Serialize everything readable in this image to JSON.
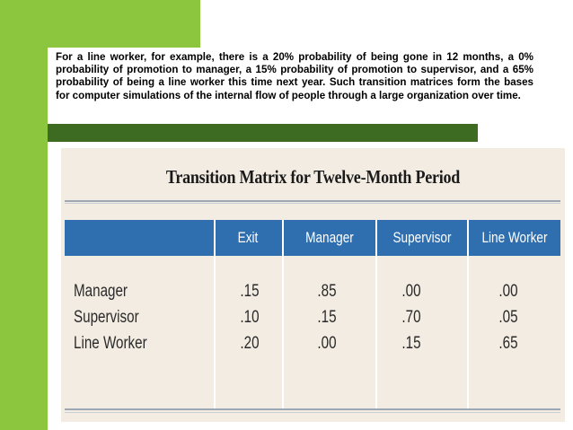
{
  "paragraph": "For a line worker, for example, there is a 20% probability of being gone in 12 months, a 0% probability of promotion to manager, a 15% probability of promotion to supervisor, and a 65% probability of being a line worker this time next year. Such transition matrices form the bases for computer simulations of the internal flow of people through a large organization over time.",
  "figure": {
    "title": "Transition Matrix for Twelve-Month Period",
    "columns": [
      "Exit",
      "Manager",
      "Supervisor",
      "Line Worker"
    ],
    "rows": [
      {
        "label": "Manager",
        "values": [
          ".15",
          ".85",
          ".00",
          ".00"
        ]
      },
      {
        "label": "Supervisor",
        "values": [
          ".10",
          ".15",
          ".70",
          ".05"
        ]
      },
      {
        "label": "Line Worker",
        "values": [
          ".20",
          ".00",
          ".15",
          ".65"
        ]
      }
    ]
  },
  "colors": {
    "accent_green": "#8cc63f",
    "dark_green": "#3d6b21",
    "header_blue": "#2f6fb0",
    "figure_background": "#f3ece2"
  }
}
